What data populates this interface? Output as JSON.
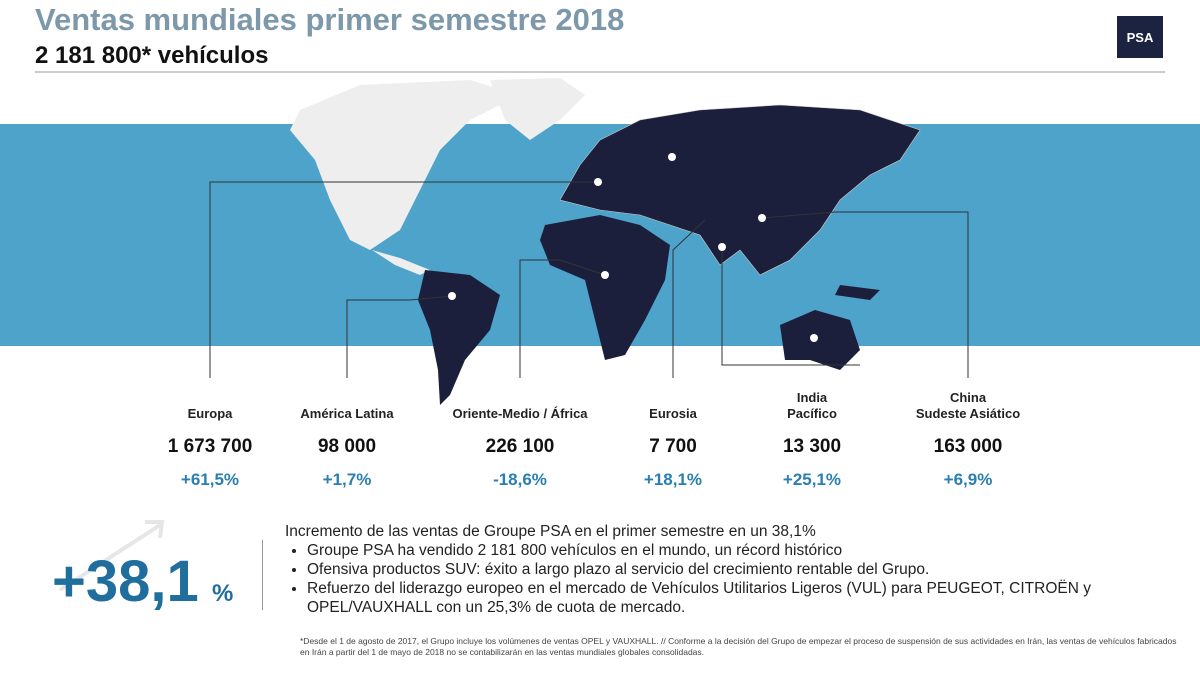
{
  "header": {
    "title": "Ventas mundiales primer semestre 2018",
    "subtitle": "2 181 800* vehículos",
    "logo": "PSA"
  },
  "regions": [
    {
      "name": [
        "Europa"
      ],
      "value": "1 673 700",
      "change": "+61,5%"
    },
    {
      "name": [
        "América Latina"
      ],
      "value": "98 000",
      "change": "+1,7%"
    },
    {
      "name": [
        "Oriente-Medio / África"
      ],
      "value": "226 100",
      "change": "-18,6%"
    },
    {
      "name": [
        "Eurosia"
      ],
      "value": "7 700",
      "change": "+18,1%"
    },
    {
      "name": [
        "India",
        "Pacífico"
      ],
      "value": "13 300",
      "change": "+25,1%"
    },
    {
      "name": [
        "China",
        "Sudeste Asiático"
      ],
      "value": "163 000",
      "change": "+6,9%"
    }
  ],
  "highlight": {
    "value": "+38,1",
    "unit": "%"
  },
  "intro": "Incremento de las ventas de Groupe PSA en el primer semestre en un 38,1%",
  "bullets": [
    "Groupe PSA ha vendido 2 181 800 vehículos en el mundo, un récord histórico",
    "Ofensiva productos SUV: éxito a largo plazo al servicio del crecimiento rentable del Grupo.",
    "Refuerzo del liderazgo europeo en el mercado de Vehículos Utilitarios Ligeros (VUL) para PEUGEOT, CITROËN y OPEL/VAUXHALL con un 25,3% de cuota de mercado."
  ],
  "footnote": "*Desde el 1 de agosto de 2017, el Grupo incluye los volúmenes de ventas OPEL y VAUXHALL. // Conforme a la decisión del Grupo de empezar el proceso de suspensión de sus actividades en Irán, las ventas de vehículos fabricados en Irán a partir del 1 de mayo de 2018 no se contabilizarán en las ventas mundiales globales consolidadas."
}
